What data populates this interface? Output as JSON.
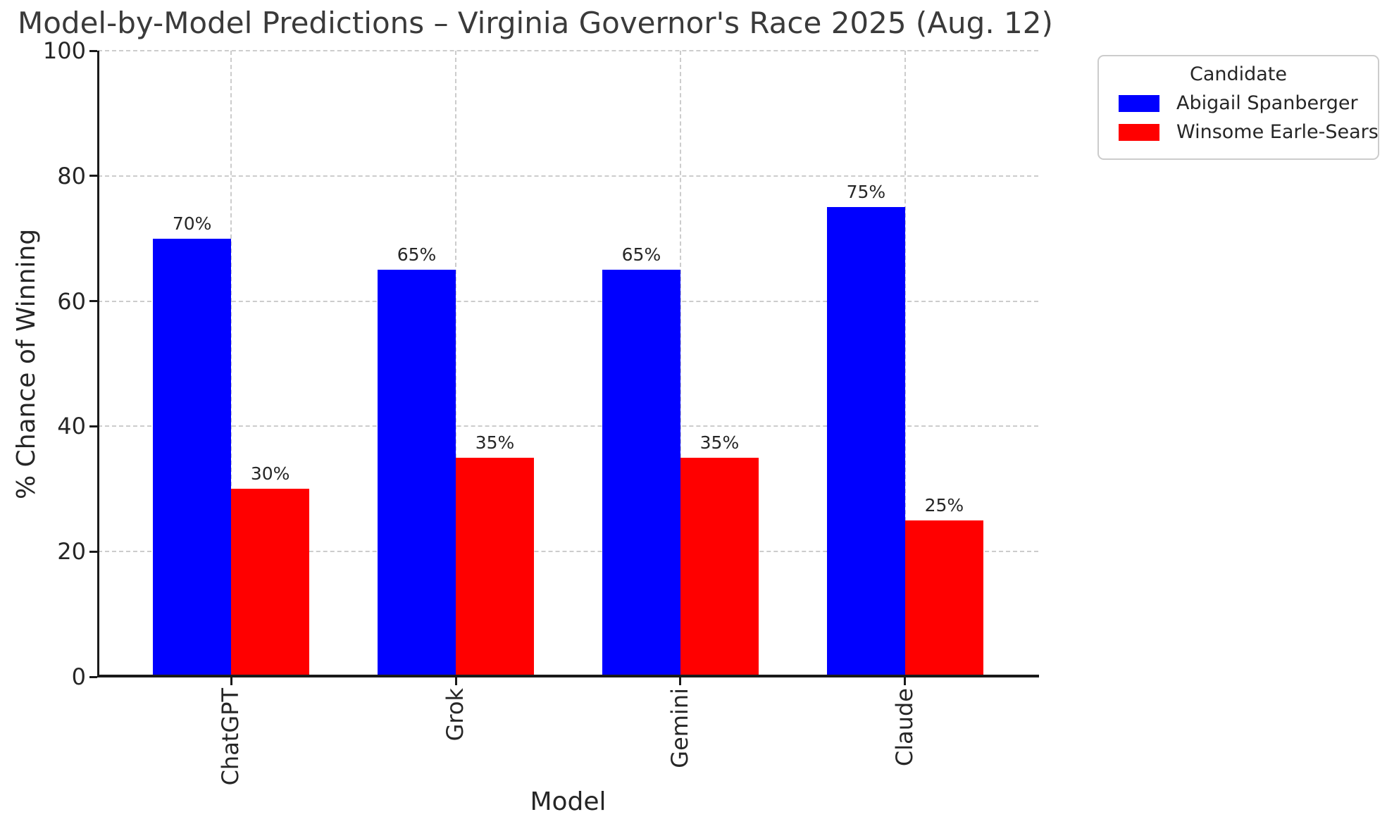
{
  "chart_data": {
    "type": "bar",
    "title": "Model-by-Model Predictions – Virginia Governor's Race 2025 (Aug. 12)",
    "xlabel": "Model",
    "ylabel": "% Chance of Winning",
    "categories": [
      "ChatGPT",
      "Grok",
      "Gemini",
      "Claude"
    ],
    "series": [
      {
        "name": "Abigail Spanberger",
        "color": "#0000ff",
        "values": [
          70,
          65,
          65,
          75
        ]
      },
      {
        "name": "Winsome Earle-Sears",
        "color": "#ff0000",
        "values": [
          30,
          35,
          35,
          25
        ]
      }
    ],
    "value_label_suffix": "%",
    "value_labels": [
      "70%",
      "30%",
      "65%",
      "35%",
      "65%",
      "35%",
      "75%",
      "25%"
    ],
    "ylim": [
      0,
      100
    ],
    "yticks": [
      0,
      20,
      40,
      60,
      80,
      100
    ],
    "grid": "dashed",
    "legend": {
      "title": "Candidate",
      "position": "upper-right"
    }
  }
}
